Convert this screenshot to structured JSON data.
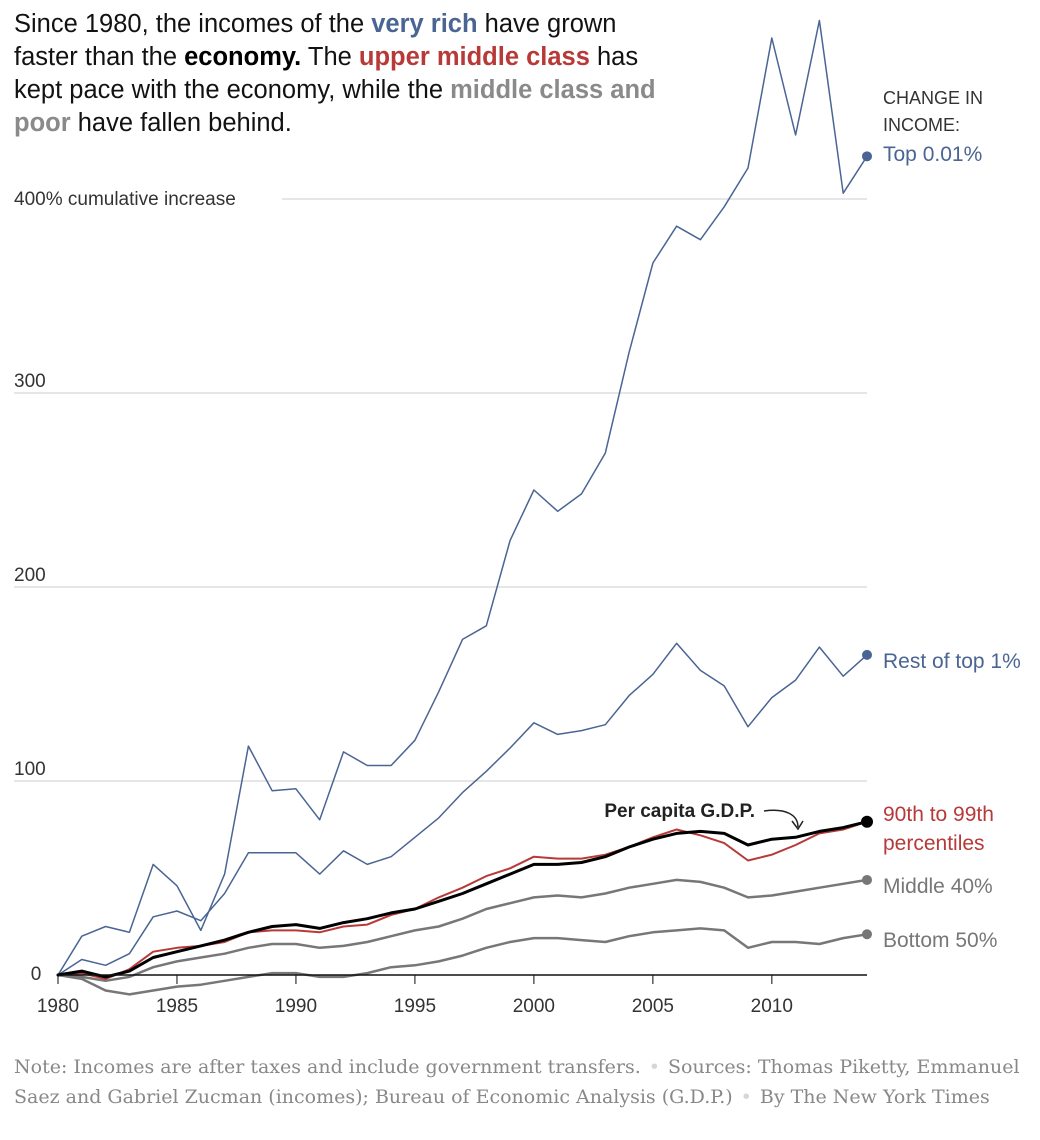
{
  "headline": {
    "t1": "Since 1980, the incomes of the ",
    "very_rich": "very rich",
    "t2": " have grown faster than the ",
    "economy": "economy.",
    "t3": " The ",
    "upper_middle": "upper middle class",
    "t4": " has kept pace with the economy, while the ",
    "middle_poor": "middle class and poor",
    "t5": " have fallen behind."
  },
  "colors": {
    "very_rich": "#4a6593",
    "economy": "#000000",
    "upper_middle": "#b73a38",
    "middle_poor": "#8a8a8a",
    "grid": "#dddddd",
    "axis_text": "#333333"
  },
  "chart_data": {
    "type": "line",
    "ylabel": "400% cumulative increase",
    "x_ticks": [
      1980,
      1985,
      1990,
      1995,
      2000,
      2005,
      2010
    ],
    "y_ticks": [
      {
        "value": 0,
        "label": "0"
      },
      {
        "value": 100,
        "label": "100"
      },
      {
        "value": 200,
        "label": "200"
      },
      {
        "value": 300,
        "label": "300"
      },
      {
        "value": 400,
        "label": "400% cumulative increase"
      }
    ],
    "xlim": [
      1980,
      2014
    ],
    "ylim": [
      -10,
      490
    ],
    "legend_header": [
      "CHANGE IN",
      "INCOME:"
    ],
    "annotation": "Per capita G.D.P.",
    "x": [
      1980,
      1981,
      1982,
      1983,
      1984,
      1985,
      1986,
      1987,
      1988,
      1989,
      1990,
      1991,
      1992,
      1993,
      1994,
      1995,
      1996,
      1997,
      1998,
      1999,
      2000,
      2001,
      2002,
      2003,
      2004,
      2005,
      2006,
      2007,
      2008,
      2009,
      2010,
      2011,
      2012,
      2013,
      2014
    ],
    "series": [
      {
        "key": "top001",
        "name": "Top 0.01%",
        "label_lines": [
          "Top 0.01%"
        ],
        "color": "#4a6593",
        "width": 1.5,
        "values": [
          0,
          20,
          25,
          22,
          57,
          46,
          23,
          52,
          118,
          95,
          96,
          80,
          115,
          108,
          108,
          121,
          146,
          173,
          180,
          224,
          250,
          239,
          248,
          269,
          321,
          367,
          386,
          379,
          396,
          416,
          483,
          433,
          492,
          403,
          422
        ]
      },
      {
        "key": "rest1",
        "name": "Rest of top 1%",
        "label_lines": [
          "Rest of top 1%"
        ],
        "color": "#4a6593",
        "width": 1.5,
        "values": [
          0,
          8,
          5,
          11,
          30,
          33,
          28,
          42,
          63,
          63,
          63,
          52,
          64,
          57,
          61,
          71,
          81,
          94,
          105,
          117,
          130,
          124,
          126,
          129,
          144,
          155,
          171,
          157,
          149,
          128,
          143,
          152,
          169,
          154,
          165
        ]
      },
      {
        "key": "p90",
        "name": "90th to 99th percentiles",
        "label_lines": [
          "90th to 99th",
          "percentiles"
        ],
        "color": "#b73a38",
        "width": 2,
        "values": [
          0,
          1,
          -2,
          3,
          12,
          14,
          15,
          17,
          22,
          23,
          23,
          22,
          25,
          26,
          31,
          34,
          40,
          45,
          51,
          55,
          61,
          60,
          60,
          62,
          66,
          71,
          75,
          72,
          68,
          59,
          62,
          67,
          73,
          75,
          79
        ]
      },
      {
        "key": "gdp",
        "name": "Per capita G.D.P.",
        "label_lines": [],
        "color": "#000000",
        "width": 3,
        "values": [
          0,
          2,
          -1,
          2,
          9,
          12,
          15,
          18,
          22,
          25,
          26,
          24,
          27,
          29,
          32,
          34,
          38,
          42,
          47,
          52,
          57,
          57,
          58,
          61,
          66,
          70,
          73,
          74,
          73,
          67,
          70,
          71,
          74,
          76,
          79
        ]
      },
      {
        "key": "mid40",
        "name": "Middle 40%",
        "label_lines": [
          "Middle 40%"
        ],
        "color": "#777777",
        "width": 2.5,
        "values": [
          0,
          -1,
          -3,
          -1,
          4,
          7,
          9,
          11,
          14,
          16,
          16,
          14,
          15,
          17,
          20,
          23,
          25,
          29,
          34,
          37,
          40,
          41,
          40,
          42,
          45,
          47,
          49,
          48,
          45,
          40,
          41,
          43,
          45,
          47,
          49
        ]
      },
      {
        "key": "bot50",
        "name": "Bottom 50%",
        "label_lines": [
          "Bottom 50%"
        ],
        "color": "#777777",
        "width": 2.5,
        "values": [
          0,
          -2,
          -8,
          -10,
          -8,
          -6,
          -5,
          -3,
          -1,
          1,
          1,
          -1,
          -1,
          1,
          4,
          5,
          7,
          10,
          14,
          17,
          19,
          19,
          18,
          17,
          20,
          22,
          23,
          24,
          23,
          14,
          17,
          17,
          16,
          19,
          21
        ]
      }
    ]
  },
  "note": {
    "note_text": "Note: Incomes are after taxes and include government transfers.",
    "sources_text": "Sources: Thomas Piketty, Emmanuel Saez and Gabriel Zucman (incomes); Bureau of Economic Analysis (G.D.P.)",
    "byline": "By The New York Times",
    "dot": "•"
  }
}
